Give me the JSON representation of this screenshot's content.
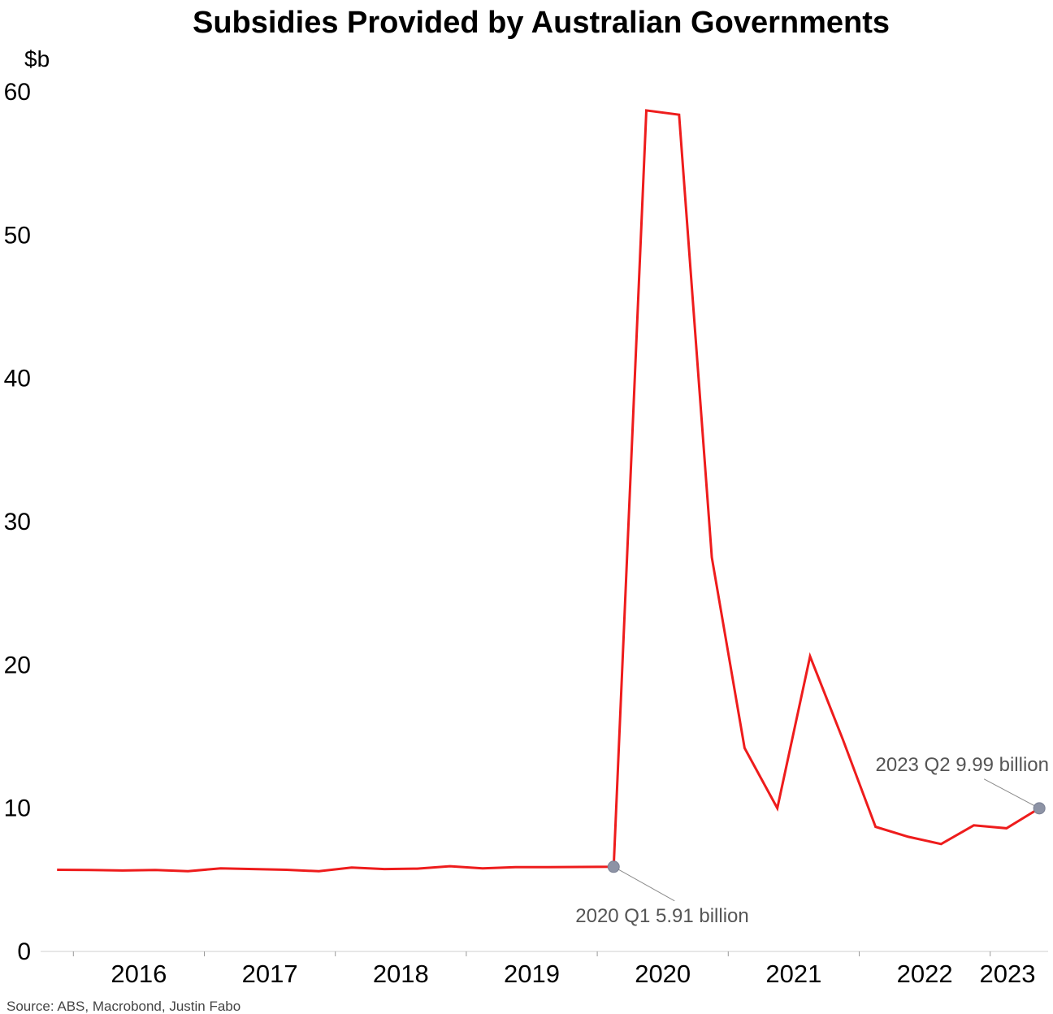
{
  "chart_data": {
    "type": "line",
    "title": "Subsidies Provided by Australian Governments",
    "ylabel": "$b",
    "xlabel": "",
    "ylim": [
      0,
      60
    ],
    "yticks": [
      0,
      10,
      20,
      30,
      40,
      50,
      60
    ],
    "grid": false,
    "legend": "none",
    "x_tick_labels": [
      "2016",
      "2017",
      "2018",
      "2019",
      "2020",
      "2021",
      "2022",
      "2023"
    ],
    "x_tick_years": [
      2016,
      2017,
      2018,
      2019,
      2020,
      2021,
      2022,
      2023
    ],
    "line_color": "#ee1c1c",
    "marker_color": "#8d93a5",
    "series": [
      {
        "x": [
          "2015 Q4",
          "2016 Q1",
          "2016 Q2",
          "2016 Q3",
          "2016 Q4",
          "2017 Q1",
          "2017 Q2",
          "2017 Q3",
          "2017 Q4",
          "2018 Q1",
          "2018 Q2",
          "2018 Q3",
          "2018 Q4",
          "2019 Q1",
          "2019 Q2",
          "2019 Q3",
          "2019 Q4",
          "2020 Q1",
          "2020 Q2",
          "2020 Q3",
          "2020 Q4",
          "2021 Q1",
          "2021 Q2",
          "2021 Q3",
          "2021 Q4",
          "2022 Q1",
          "2022 Q2",
          "2022 Q3",
          "2022 Q4",
          "2023 Q1",
          "2023 Q2"
        ],
        "values": [
          5.7,
          5.68,
          5.65,
          5.68,
          5.6,
          5.8,
          5.75,
          5.7,
          5.6,
          5.85,
          5.75,
          5.78,
          5.95,
          5.8,
          5.88,
          5.88,
          5.9,
          5.91,
          58.7,
          58.4,
          27.5,
          14.2,
          10.0,
          20.6,
          14.8,
          8.7,
          8.0,
          7.5,
          8.8,
          8.6,
          9.99
        ]
      }
    ],
    "annotations": [
      {
        "x": "2020 Q1",
        "y": 5.91,
        "text": "2020 Q1 5.91 billion"
      },
      {
        "x": "2023 Q2",
        "y": 9.99,
        "text": "2023 Q2 9.99 billion"
      }
    ]
  },
  "source": "Source: ABS, Macrobond, Justin Fabo"
}
